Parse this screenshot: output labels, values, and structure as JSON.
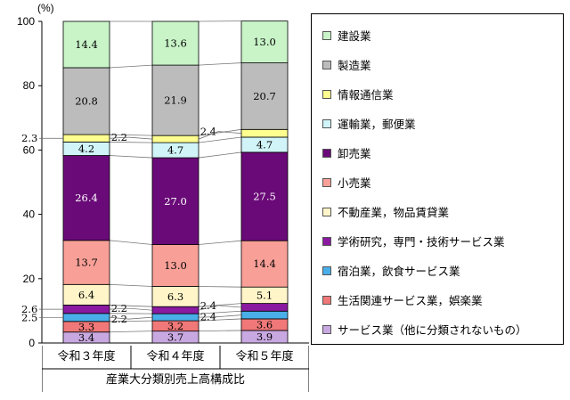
{
  "chart_data": {
    "type": "bar",
    "stacked": true,
    "unit_label": "(%)",
    "xlabel": "産業大分類別売上高構成比",
    "ylim": [
      0,
      100
    ],
    "yticks": [
      "0",
      "20",
      "40",
      "60",
      "80",
      "100"
    ],
    "categories": [
      "令和３年度",
      "令和４年度",
      "令和５年度"
    ],
    "series": [
      {
        "name": "サービス業（他に分類されないもの）",
        "color": "#c8a8e0",
        "values": [
          3.4,
          3.7,
          3.9
        ]
      },
      {
        "name": "生活関連サービス業，娯楽業",
        "color": "#f07878",
        "values": [
          3.3,
          3.2,
          3.6
        ]
      },
      {
        "name": "宿泊業，飲食サービス業",
        "color": "#4aaee8",
        "values": [
          2.5,
          2.2,
          2.4
        ]
      },
      {
        "name": "学術研究，専門・技術サービス業",
        "color": "#8a1aa0",
        "values": [
          2.6,
          2.2,
          2.4
        ]
      },
      {
        "name": "不動産業，物品賃貸業",
        "color": "#fff5c8",
        "values": [
          6.4,
          6.3,
          5.1
        ]
      },
      {
        "name": "小売業",
        "color": "#f8a098",
        "values": [
          13.7,
          13.0,
          14.4
        ]
      },
      {
        "name": "卸売業",
        "color": "#6a0a78",
        "values": [
          26.4,
          27.0,
          27.5
        ]
      },
      {
        "name": "運輸業，郵便業",
        "color": "#d0f4f8",
        "values": [
          4.2,
          4.7,
          4.7
        ]
      },
      {
        "name": "情報通信業",
        "color": "#ffff90",
        "values": [
          2.3,
          2.2,
          2.4
        ]
      },
      {
        "name": "製造業",
        "color": "#bcbcbc",
        "values": [
          20.8,
          21.9,
          20.7
        ]
      },
      {
        "name": "建設業",
        "color": "#c8f4c8",
        "values": [
          14.4,
          13.6,
          13.0
        ]
      }
    ]
  },
  "legend_order": [
    10,
    9,
    8,
    7,
    6,
    5,
    4,
    3,
    2,
    1,
    0
  ]
}
